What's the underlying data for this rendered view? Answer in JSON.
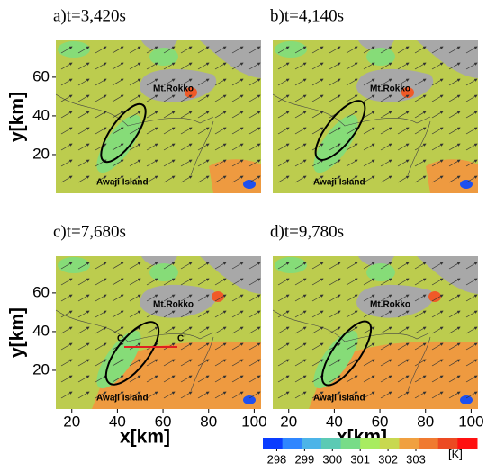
{
  "chart_data": [
    {
      "type": "map",
      "title": "a)t=3,420s",
      "xlim": [
        13,
        103
      ],
      "ylim": [
        0,
        79
      ],
      "yticks": [
        20,
        40,
        60
      ],
      "ylabel": "y[km]",
      "annotations": [
        "Mt.Rokko",
        "Awaji Island"
      ]
    },
    {
      "type": "map",
      "title": "b)t=4,140s",
      "xlim": [
        13,
        103
      ],
      "ylim": [
        0,
        79
      ],
      "annotations": [
        "Mt.Rokko",
        "Awaji Island"
      ]
    },
    {
      "type": "map",
      "title": "c)t=7,680s",
      "xlim": [
        13,
        103
      ],
      "ylim": [
        0,
        79
      ],
      "yticks": [
        20,
        40,
        60
      ],
      "xticks": [
        20,
        40,
        60,
        80,
        100
      ],
      "ylabel": "y[km]",
      "xlabel": "x[km]",
      "annotations": [
        "Mt.Rokko",
        "Awaji Island",
        "C",
        "C'"
      ]
    },
    {
      "type": "map",
      "title": "d)t=9,780s",
      "xlim": [
        13,
        103
      ],
      "ylim": [
        0,
        79
      ],
      "xticks": [
        20,
        40,
        60,
        80,
        100
      ],
      "xlabel": "x[km]",
      "annotations": [
        "Mt.Rokko",
        "Awaji Island"
      ]
    },
    {
      "type": "colorbar",
      "lim": [
        297.5,
        305.2
      ],
      "ticks": [
        298,
        299,
        300,
        301,
        302,
        303
      ],
      "label": "[K]",
      "colors": [
        "#0a3cff",
        "#2f86ff",
        "#4cb4e8",
        "#5ccab4",
        "#78dc88",
        "#a8ec60",
        "#c8d850",
        "#f0a040",
        "#f07a30",
        "#ec4a22",
        "#ff1010"
      ]
    }
  ]
}
